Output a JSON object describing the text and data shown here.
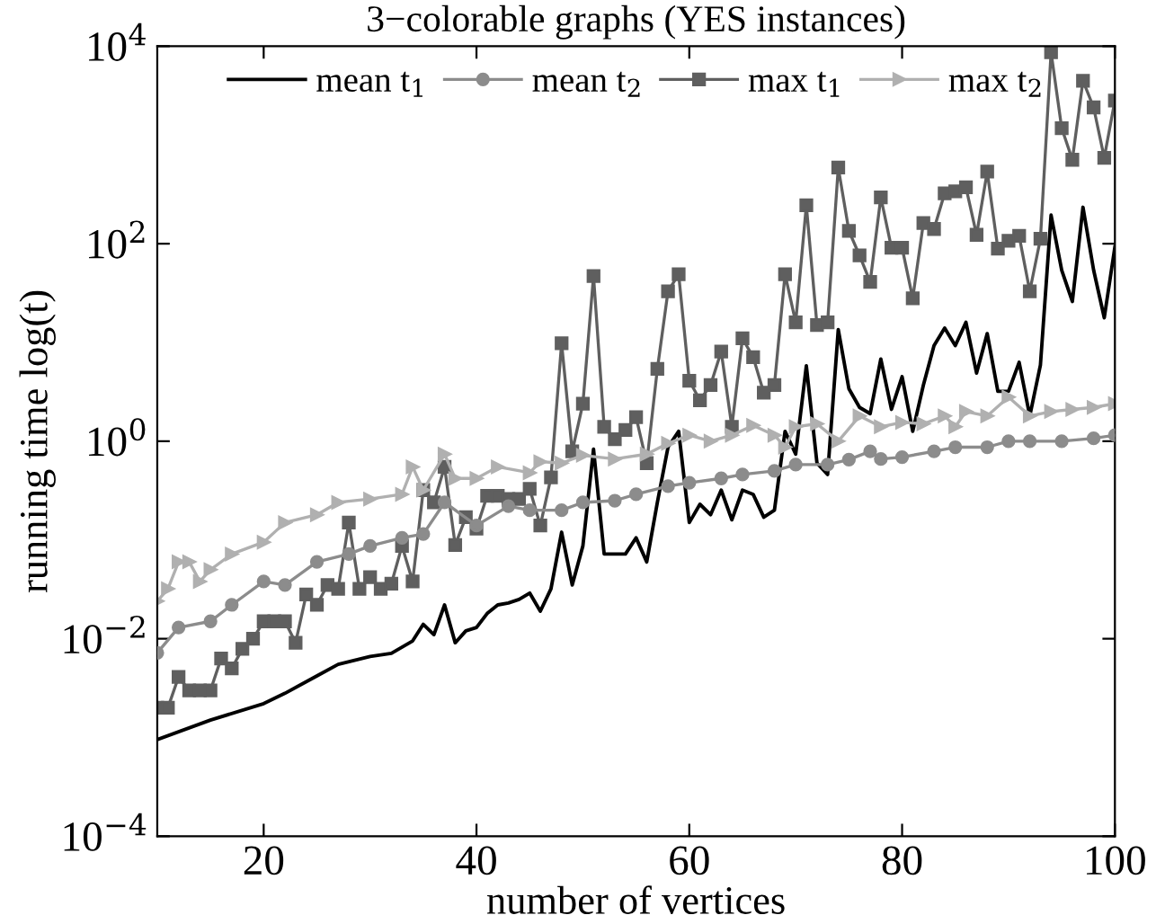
{
  "chart_data": {
    "type": "line",
    "title": "3−colorable graphs (YES instances)",
    "xlabel": "number of vertices",
    "ylabel": "running time log(t)",
    "log": "y",
    "grid": false,
    "legend": "top",
    "xlim": [
      10,
      100
    ],
    "xticks": [
      20,
      40,
      60,
      80,
      100
    ],
    "ylim": [
      0.0001,
      10000
    ],
    "yticks": [
      {
        "value": 0.0001,
        "label": "10$^{−4}$"
      },
      {
        "value": 0.01,
        "label": "10$^{−2}$"
      },
      {
        "value": 1,
        "label": "10$^{0}$"
      },
      {
        "value": 100,
        "label": "10$^{2}$"
      },
      {
        "value": 10000,
        "label": "10$^{4}$"
      }
    ],
    "series": [
      {
        "name": "mean t$_{1}$",
        "color": "#000000",
        "marker": "none",
        "x": [
          10,
          15,
          20,
          22,
          25,
          27,
          30,
          32,
          34,
          35,
          36,
          37,
          38,
          39,
          40,
          41,
          42,
          43,
          44,
          45,
          46,
          47,
          48,
          49,
          50,
          51,
          52,
          53,
          54,
          55,
          56,
          57,
          58,
          59,
          60,
          61,
          62,
          63,
          64,
          65,
          66,
          67,
          68,
          69,
          70,
          71,
          72,
          73,
          74,
          75,
          76,
          77,
          78,
          79,
          80,
          81,
          82,
          83,
          84,
          85,
          86,
          87,
          88,
          89,
          90,
          91,
          92,
          93,
          94,
          95,
          96,
          97,
          98,
          99,
          100
        ],
        "values": [
          0.00095,
          0.0015,
          0.0022,
          0.0028,
          0.0042,
          0.0055,
          0.0066,
          0.0071,
          0.0095,
          0.014,
          0.011,
          0.022,
          0.0091,
          0.012,
          0.013,
          0.018,
          0.022,
          0.023,
          0.025,
          0.029,
          0.019,
          0.032,
          0.12,
          0.035,
          0.087,
          0.83,
          0.072,
          0.072,
          0.072,
          0.105,
          0.06,
          0.24,
          0.87,
          1.26,
          0.15,
          0.23,
          0.18,
          0.32,
          0.16,
          0.32,
          0.29,
          0.17,
          0.2,
          1.26,
          0.74,
          5.8,
          0.6,
          0.46,
          13.5,
          3.4,
          2.2,
          1.9,
          6.8,
          2.1,
          4.5,
          1.26,
          3.7,
          9.3,
          14,
          9.3,
          16,
          4.9,
          12.3,
          3.2,
          3.2,
          6.3,
          1.8,
          5.9,
          195,
          54,
          26,
          234,
          54,
          17.8,
          93
        ]
      },
      {
        "name": "mean t$_{2}$",
        "color": "#8c8c8c",
        "marker": "circle",
        "x": [
          10,
          12,
          15,
          17,
          20,
          22,
          25,
          28,
          30,
          33,
          35,
          37,
          40,
          43,
          45,
          48,
          50,
          53,
          55,
          58,
          60,
          63,
          65,
          68,
          70,
          73,
          75,
          77,
          78,
          80,
          83,
          85,
          88,
          90,
          92,
          95,
          98,
          100
        ],
        "values": [
          0.0072,
          0.013,
          0.015,
          0.022,
          0.038,
          0.035,
          0.06,
          0.072,
          0.087,
          0.105,
          0.115,
          0.24,
          0.14,
          0.22,
          0.2,
          0.2,
          0.24,
          0.25,
          0.29,
          0.35,
          0.38,
          0.42,
          0.46,
          0.5,
          0.58,
          0.58,
          0.65,
          0.79,
          0.66,
          0.69,
          0.79,
          0.87,
          0.87,
          1.0,
          1.0,
          1.0,
          1.07,
          1.15
        ]
      },
      {
        "name": "max t$_{1}$",
        "color": "#5f5f5f",
        "marker": "square",
        "x": [
          10,
          11,
          12,
          13,
          14,
          15,
          16,
          17,
          18,
          19,
          20,
          21,
          22,
          23,
          24,
          25,
          26,
          27,
          28,
          29,
          30,
          31,
          32,
          33,
          34,
          35,
          36,
          37,
          38,
          39,
          40,
          41,
          42,
          43,
          44,
          45,
          46,
          47,
          48,
          49,
          50,
          51,
          52,
          53,
          54,
          55,
          56,
          57,
          58,
          59,
          60,
          61,
          62,
          63,
          64,
          65,
          66,
          67,
          68,
          69,
          70,
          71,
          72,
          73,
          74,
          75,
          76,
          77,
          78,
          79,
          80,
          81,
          82,
          83,
          84,
          85,
          86,
          87,
          88,
          89,
          90,
          91,
          92,
          93,
          94,
          95,
          96,
          97,
          98,
          99,
          100
        ],
        "values": [
          0.002,
          0.002,
          0.0041,
          0.003,
          0.003,
          0.003,
          0.0063,
          0.005,
          0.0079,
          0.01,
          0.015,
          0.015,
          0.015,
          0.0091,
          0.028,
          0.022,
          0.035,
          0.032,
          0.15,
          0.032,
          0.042,
          0.032,
          0.036,
          0.087,
          0.038,
          0.32,
          0.24,
          0.55,
          0.089,
          0.17,
          0.13,
          0.28,
          0.28,
          0.26,
          0.26,
          0.33,
          0.14,
          0.43,
          9.8,
          0.79,
          2.4,
          47,
          1.4,
          1.05,
          1.3,
          1.75,
          0.6,
          5.4,
          33,
          49,
          4.1,
          2.6,
          3.7,
          8.1,
          1.4,
          11,
          7.1,
          3.1,
          3.7,
          49,
          16,
          245,
          15,
          16,
          590,
          135,
          76,
          41,
          295,
          91,
          91,
          28,
          162,
          141,
          324,
          339,
          372,
          123,
          537,
          89,
          107,
          120,
          33,
          112,
          8710,
          1480,
          708,
          4470,
          2400,
          741,
          2820
        ]
      },
      {
        "name": "max t$_{2}$",
        "color": "#b0b0b0",
        "marker": "triangle",
        "x": [
          10,
          11,
          12,
          13,
          14,
          15,
          17,
          20,
          22,
          25,
          27,
          30,
          33,
          34,
          35,
          37,
          38,
          40,
          42,
          45,
          46,
          48,
          50,
          53,
          56,
          58,
          60,
          62,
          64,
          66,
          68,
          69,
          70,
          72,
          74,
          76,
          78,
          80,
          82,
          84,
          85,
          86,
          88,
          90,
          92,
          94,
          96,
          98,
          100
        ],
        "values": [
          0.024,
          0.032,
          0.06,
          0.06,
          0.038,
          0.05,
          0.072,
          0.095,
          0.15,
          0.18,
          0.24,
          0.26,
          0.29,
          0.55,
          0.32,
          0.74,
          0.42,
          0.42,
          0.55,
          0.48,
          0.62,
          0.6,
          0.72,
          0.66,
          0.74,
          0.95,
          1.15,
          1.0,
          1.15,
          1.45,
          1.15,
          0.87,
          1.4,
          1.5,
          1.0,
          1.8,
          1.4,
          1.55,
          1.5,
          1.8,
          1.4,
          2.0,
          1.8,
          2.8,
          1.8,
          2.0,
          2.1,
          2.2,
          2.4
        ]
      }
    ]
  }
}
